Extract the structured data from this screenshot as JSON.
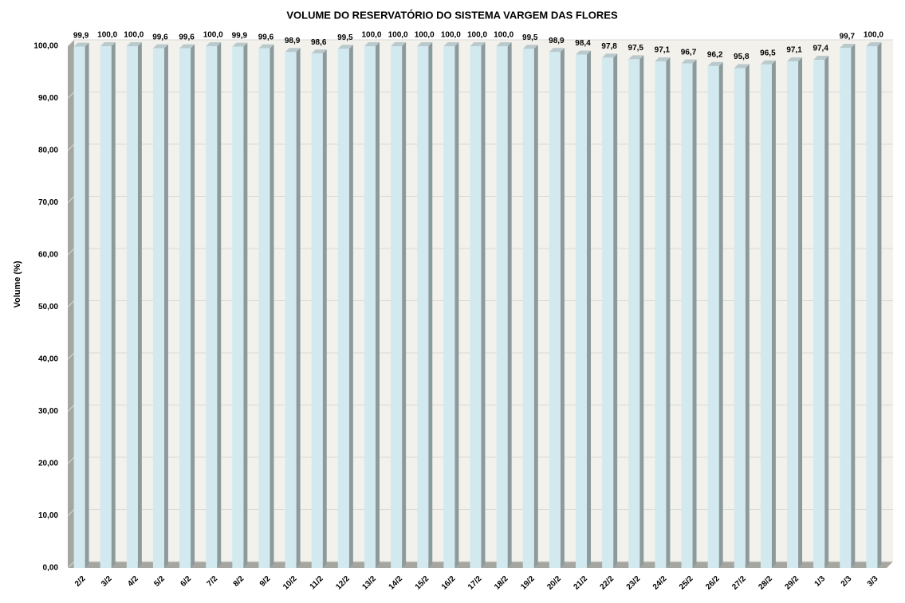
{
  "chart_data": {
    "type": "bar",
    "title": "VOLUME DO RESERVATÓRIO DO SISTEMA VARGEM DAS FLORES",
    "y_label": "Volume (%)",
    "categories": [
      "2/2",
      "3/2",
      "4/2",
      "5/2",
      "6/2",
      "7/2",
      "8/2",
      "9/2",
      "10/2",
      "11/2",
      "12/2",
      "13/2",
      "14/2",
      "15/2",
      "16/2",
      "17/2",
      "18/2",
      "19/2",
      "20/2",
      "21/2",
      "22/2",
      "23/2",
      "24/2",
      "25/2",
      "26/2",
      "27/2",
      "28/2",
      "29/2",
      "1/3",
      "2/3",
      "3/3"
    ],
    "values": [
      99.9,
      100,
      100,
      99.6,
      99.6,
      100,
      99.9,
      99.6,
      98.9,
      98.6,
      99.5,
      100,
      100,
      100,
      100,
      100,
      100,
      99.5,
      98.9,
      98.4,
      97.8,
      97.5,
      97.1,
      96.7,
      96.2,
      95.8,
      96.5,
      97.1,
      97.4,
      99.7,
      100
    ],
    "value_labels": [
      "99,9",
      "100,0",
      "100,0",
      "99,6",
      "99,6",
      "100,0",
      "99,9",
      "99,6",
      "98,9",
      "98,6",
      "99,5",
      "100,0",
      "100,0",
      "100,0",
      "100,0",
      "100,0",
      "100,0",
      "99,5",
      "98,9",
      "98,4",
      "97,8",
      "97,5",
      "97,1",
      "96,7",
      "96,2",
      "95,8",
      "96,5",
      "97,1",
      "97,4",
      "99,7",
      "100,0"
    ],
    "color": "#d2e9ef",
    "ylim": [
      0,
      100
    ],
    "yticks": [
      {
        "value": 0,
        "label": "0,00"
      },
      {
        "value": 10,
        "label": "10,00"
      },
      {
        "value": 20,
        "label": "20,00"
      },
      {
        "value": 30,
        "label": "30,00"
      },
      {
        "value": 40,
        "label": "40,00"
      },
      {
        "value": 50,
        "label": "50,00"
      },
      {
        "value": 60,
        "label": "60,00"
      },
      {
        "value": 70,
        "label": "70,00"
      },
      {
        "value": 80,
        "label": "80,00"
      },
      {
        "value": 90,
        "label": "90,00"
      },
      {
        "value": 100,
        "label": "100,00"
      }
    ],
    "grid": true
  }
}
